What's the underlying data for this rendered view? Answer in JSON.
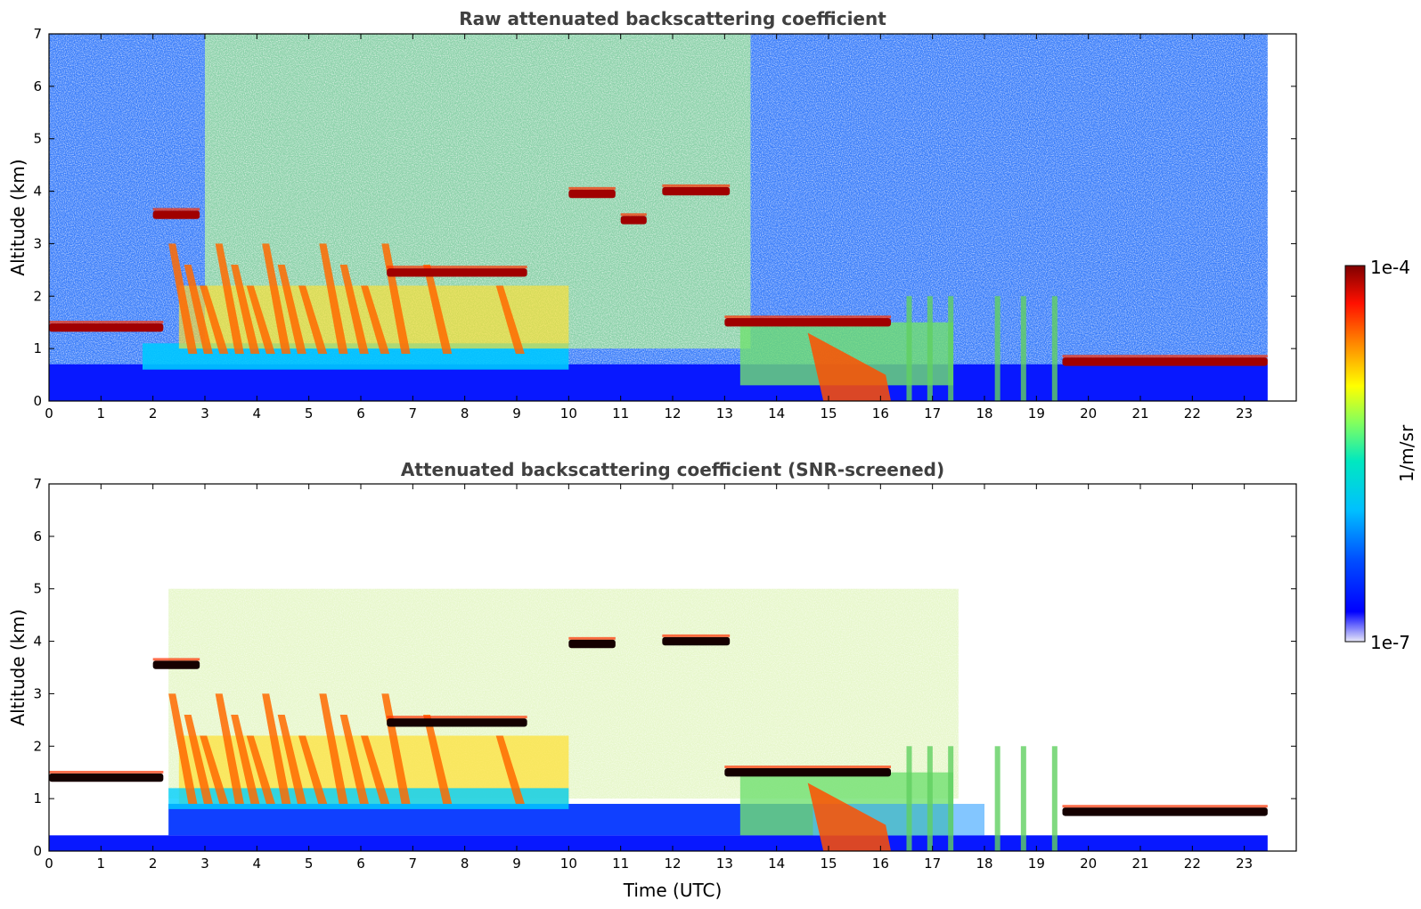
{
  "chart_data": [
    {
      "type": "heatmap",
      "title": "Raw attenuated backscattering coefficient",
      "xlabel": "",
      "ylabel": "Altitude (km)",
      "xlim": [
        0,
        24
      ],
      "ylim": [
        0,
        7
      ],
      "xticks": [
        "0",
        "1",
        "2",
        "3",
        "4",
        "5",
        "6",
        "7",
        "8",
        "9",
        "10",
        "11",
        "12",
        "13",
        "14",
        "15",
        "16",
        "17",
        "18",
        "19",
        "20",
        "21",
        "22",
        "23"
      ],
      "yticks": [
        "0",
        "1",
        "2",
        "3",
        "4",
        "5",
        "6",
        "7"
      ],
      "data_end_time": 23.45,
      "colormap": "jet (blue to dark red), log scale",
      "cloud_layers": [
        {
          "t_start": 0.0,
          "t_end": 2.2,
          "altitude_km": 1.4,
          "value": "1e-4"
        },
        {
          "t_start": 2.0,
          "t_end": 2.9,
          "altitude_km": 3.55,
          "value": "1e-4"
        },
        {
          "t_start": 6.5,
          "t_end": 9.2,
          "altitude_km": 2.45,
          "value": "1e-4"
        },
        {
          "t_start": 10.0,
          "t_end": 10.9,
          "altitude_km": 3.95,
          "value": "1e-4"
        },
        {
          "t_start": 11.0,
          "t_end": 11.5,
          "altitude_km": 3.45,
          "value": "1e-4"
        },
        {
          "t_start": 11.8,
          "t_end": 13.1,
          "altitude_km": 4.0,
          "value": "1e-4"
        },
        {
          "t_start": 13.0,
          "t_end": 16.2,
          "altitude_km": 1.5,
          "value": "1e-4"
        },
        {
          "t_start": 19.5,
          "t_end": 23.45,
          "altitude_km": 0.75,
          "value": "1e-4"
        }
      ]
    },
    {
      "type": "heatmap",
      "title": "Attenuated backscattering coefficient (SNR-screened)",
      "xlabel": "Time (UTC)",
      "ylabel": "Altitude (km)",
      "xlim": [
        0,
        24
      ],
      "ylim": [
        0,
        7
      ],
      "xticks": [
        "0",
        "1",
        "2",
        "3",
        "4",
        "5",
        "6",
        "7",
        "8",
        "9",
        "10",
        "11",
        "12",
        "13",
        "14",
        "15",
        "16",
        "17",
        "18",
        "19",
        "20",
        "21",
        "22",
        "23"
      ],
      "yticks": [
        "0",
        "1",
        "2",
        "3",
        "4",
        "5",
        "6",
        "7"
      ],
      "data_end_time": 23.45,
      "colormap": "jet (blue to dark red), log scale; saturated values shown black",
      "cloud_layers": [
        {
          "t_start": 0.0,
          "t_end": 2.2,
          "altitude_km": 1.4,
          "value": "1e-4"
        },
        {
          "t_start": 2.0,
          "t_end": 2.9,
          "altitude_km": 3.55,
          "value": "1e-4"
        },
        {
          "t_start": 6.5,
          "t_end": 9.2,
          "altitude_km": 2.45,
          "value": "1e-4"
        },
        {
          "t_start": 10.0,
          "t_end": 10.9,
          "altitude_km": 3.95,
          "value": "1e-4"
        },
        {
          "t_start": 11.8,
          "t_end": 13.1,
          "altitude_km": 4.0,
          "value": "1e-4"
        },
        {
          "t_start": 13.0,
          "t_end": 16.2,
          "altitude_km": 1.5,
          "value": "1e-4"
        },
        {
          "t_start": 19.5,
          "t_end": 23.45,
          "altitude_km": 0.75,
          "value": "1e-4"
        }
      ]
    }
  ],
  "colorbar": {
    "label": "1/m/sr",
    "max_label": "1e-4",
    "min_label": "1e-7",
    "colors": [
      "#e6e6fa",
      "#0000ff",
      "#00a0ff",
      "#00e0e0",
      "#80ff80",
      "#ffff00",
      "#ff8000",
      "#ff0000",
      "#800000"
    ]
  }
}
